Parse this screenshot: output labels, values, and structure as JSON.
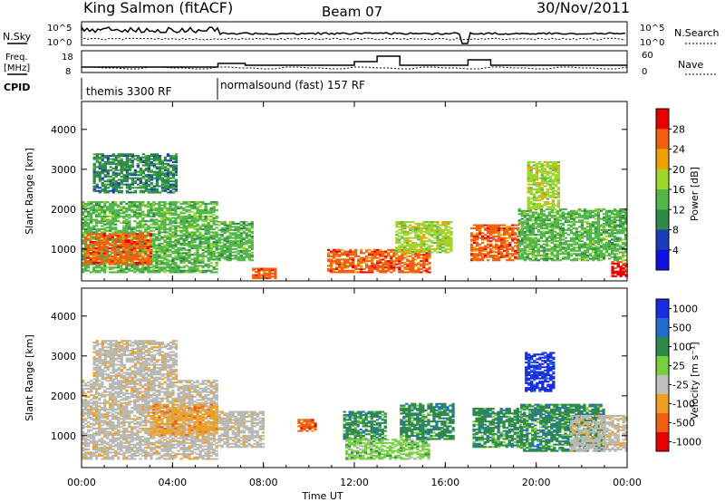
{
  "header": {
    "title": "King Salmon (fitACF)",
    "beam": "Beam 07",
    "date": "30/Nov/2011"
  },
  "left_labels": {
    "nsky": "N.Sky",
    "freq_line1": "Freq.",
    "freq_line2": "[MHz]",
    "cpid": "CPID"
  },
  "right_labels": {
    "nsearch": "N.Search",
    "nave": "Nave"
  },
  "strip_ticks": {
    "nsky_hi": "10^5",
    "nsky_lo": "10^0",
    "freq_hi": "18",
    "freq_lo": "8",
    "nave_hi": "60",
    "nave_lo": "0"
  },
  "cpid": {
    "segment1": "themis 3300 RF",
    "segment2": "normalsound (fast) 157 RF"
  },
  "colors": {
    "power": [
      "#1010e0",
      "#1c3cb8",
      "#2f8a4a",
      "#52b64a",
      "#9fd62e",
      "#f0a000",
      "#f06010",
      "#e80000"
    ],
    "velocity": [
      "#1a2ce0",
      "#1f6ed0",
      "#2f8a4a",
      "#77d040",
      "#c0c0bc",
      "#f0a020",
      "#f06010",
      "#e80000"
    ],
    "ground_scatter": "#b8b8b4"
  },
  "chart_data": [
    {
      "type": "heatmap",
      "name": "power-panel",
      "ylabel": "Slant Range [km]",
      "ylim": [
        200,
        4700
      ],
      "yticks": [
        "1000",
        "2000",
        "3000",
        "4000"
      ],
      "xlim": [
        0,
        24
      ],
      "colorbar": {
        "label": "Power [dB]",
        "ticks": [
          "4",
          "8",
          "12",
          "16",
          "20",
          "24",
          "28"
        ],
        "range": [
          0,
          32
        ]
      },
      "echo_regions": [
        {
          "t0": 0.0,
          "t1": 6.0,
          "r0": 400,
          "r1": 2200,
          "value": 14
        },
        {
          "t0": 0.1,
          "t1": 3.0,
          "r0": 600,
          "r1": 1400,
          "value": 26
        },
        {
          "t0": 0.5,
          "t1": 4.2,
          "r0": 2400,
          "r1": 3400,
          "value": 10
        },
        {
          "t0": 6.0,
          "t1": 7.5,
          "r0": 700,
          "r1": 1700,
          "value": 12
        },
        {
          "t0": 7.5,
          "t1": 8.5,
          "r0": 250,
          "r1": 500,
          "value": 26
        },
        {
          "t0": 10.8,
          "t1": 15.3,
          "r0": 400,
          "r1": 1000,
          "value": 26
        },
        {
          "t0": 13.8,
          "t1": 16.2,
          "r0": 900,
          "r1": 1700,
          "value": 18
        },
        {
          "t0": 17.1,
          "t1": 19.2,
          "r0": 700,
          "r1": 1600,
          "value": 24
        },
        {
          "t0": 19.2,
          "t1": 24.0,
          "r0": 700,
          "r1": 2000,
          "value": 14
        },
        {
          "t0": 19.6,
          "t1": 21.0,
          "r0": 2000,
          "r1": 3200,
          "value": 18
        },
        {
          "t0": 23.3,
          "t1": 24.0,
          "r0": 300,
          "r1": 700,
          "value": 28
        }
      ]
    },
    {
      "type": "heatmap",
      "name": "velocity-panel",
      "ylabel": "Slant Range [km]",
      "ylim": [
        200,
        4700
      ],
      "yticks": [
        "1000",
        "2000",
        "3000",
        "4000"
      ],
      "xlim": [
        0,
        24
      ],
      "xlabel": "Time UT",
      "xticks": [
        "00:00",
        "04:00",
        "08:00",
        "12:00",
        "16:00",
        "20:00",
        "00:00"
      ],
      "colorbar": {
        "label": "Velocity [m s⁻¹]",
        "ticks": [
          "1000",
          "500",
          "100",
          "25",
          "-25",
          "-100",
          "-500",
          "-1000"
        ]
      },
      "echo_regions": [
        {
          "t0": 0.0,
          "t1": 6.0,
          "r0": 400,
          "r1": 2400,
          "value": "ground"
        },
        {
          "t0": 0.5,
          "t1": 4.2,
          "r0": 2400,
          "r1": 3400,
          "value": "ground"
        },
        {
          "t0": 3.0,
          "t1": 6.0,
          "r0": 1000,
          "r1": 1800,
          "value": -100
        },
        {
          "t0": 6.0,
          "t1": 8.0,
          "r0": 700,
          "r1": 1600,
          "value": "ground"
        },
        {
          "t0": 9.5,
          "t1": 10.3,
          "r0": 1100,
          "r1": 1400,
          "value": -500
        },
        {
          "t0": 11.5,
          "t1": 13.3,
          "r0": 900,
          "r1": 1600,
          "value": 100
        },
        {
          "t0": 11.6,
          "t1": 15.3,
          "r0": 400,
          "r1": 900,
          "value": 25
        },
        {
          "t0": 14.0,
          "t1": 16.3,
          "r0": 900,
          "r1": 1800,
          "value": 100
        },
        {
          "t0": 17.2,
          "t1": 19.3,
          "r0": 700,
          "r1": 1700,
          "value": 100
        },
        {
          "t0": 19.5,
          "t1": 20.8,
          "r0": 2100,
          "r1": 3100,
          "value": 1000
        },
        {
          "t0": 19.3,
          "t1": 23.0,
          "r0": 600,
          "r1": 1800,
          "value": 100
        },
        {
          "t0": 21.5,
          "t1": 24.0,
          "r0": 600,
          "r1": 1500,
          "value": "ground"
        }
      ]
    }
  ]
}
